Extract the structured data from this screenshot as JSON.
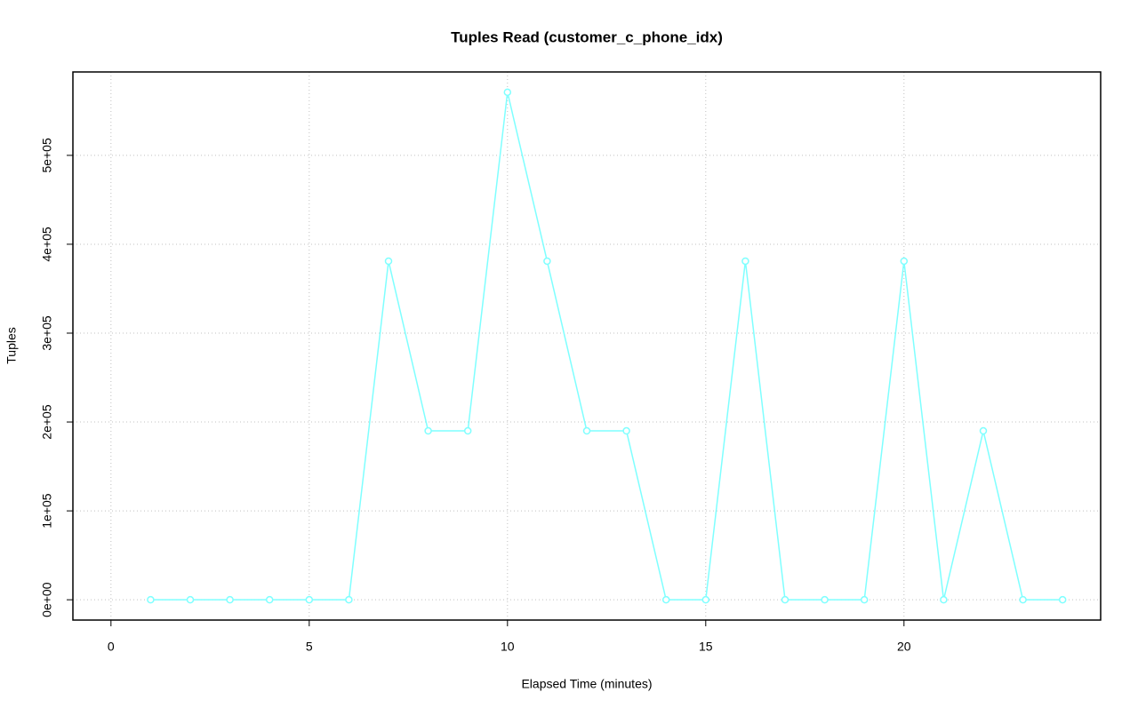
{
  "chart_data": {
    "type": "line",
    "title": "Tuples Read (customer_c_phone_idx)",
    "x_label": "Elapsed Time (minutes)",
    "y_label": "Tuples",
    "x": [
      1,
      2,
      3,
      4,
      5,
      6,
      7,
      8,
      9,
      10,
      11,
      12,
      13,
      14,
      15,
      16,
      17,
      18,
      19,
      20,
      21,
      22,
      23,
      24
    ],
    "series": [
      {
        "name": "customer_c_phone_idx",
        "color": "#7fffff",
        "values": [
          0,
          0,
          0,
          0,
          0,
          0,
          381000,
          190000,
          190000,
          571000,
          381000,
          190000,
          190000,
          0,
          0,
          381000,
          0,
          0,
          0,
          381000,
          0,
          190000,
          0,
          0
        ]
      }
    ],
    "xlim": [
      -0.96,
      24.96
    ],
    "xticks": [
      0,
      5,
      10,
      15,
      20
    ],
    "ylim": [
      -22840,
      593840
    ],
    "yticks": [
      {
        "value": 0,
        "label": "0e+00"
      },
      {
        "value": 100000,
        "label": "1e+05"
      },
      {
        "value": 200000,
        "label": "2e+05"
      },
      {
        "value": 300000,
        "label": "3e+05"
      },
      {
        "value": 400000,
        "label": "4e+05"
      },
      {
        "value": 500000,
        "label": "5e+05"
      }
    ],
    "grid": true
  }
}
